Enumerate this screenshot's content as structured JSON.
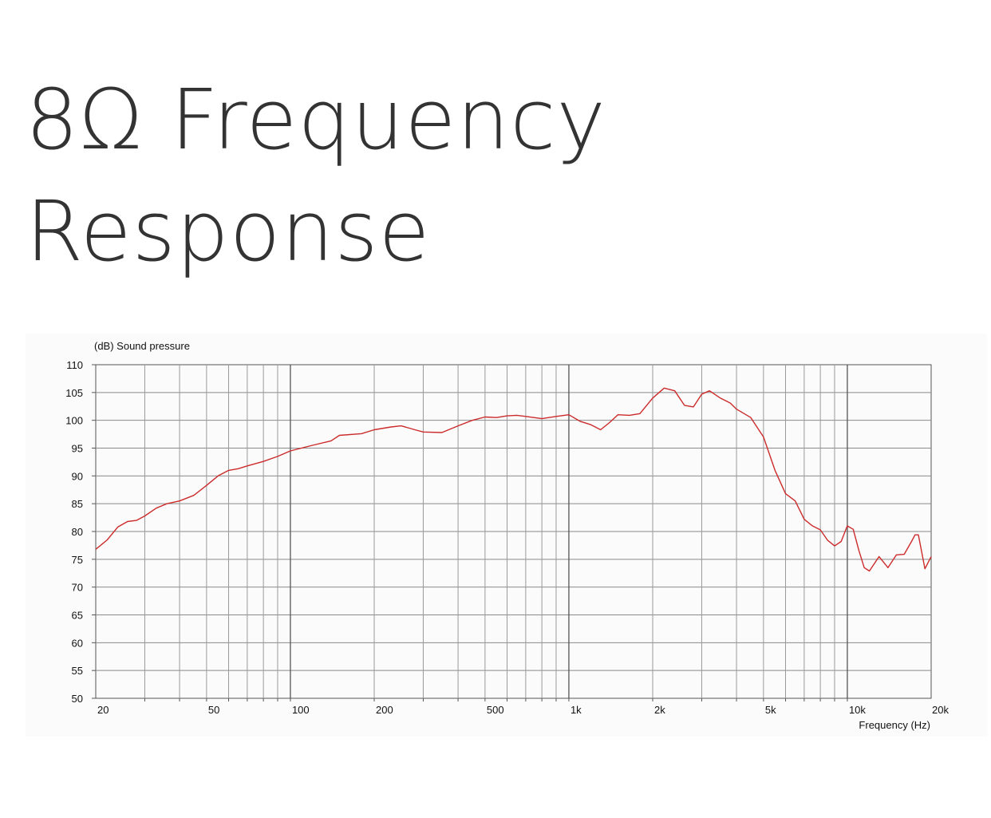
{
  "page": {
    "title_line1": "8Ω Frequency",
    "title_line2": "Response"
  },
  "chart_data": {
    "type": "line",
    "xlabel": "Frequency  (Hz)",
    "ylabel": "(dB)  Sound pressure",
    "x_scale": "log",
    "xlim": [
      20,
      20000
    ],
    "ylim": [
      50,
      110
    ],
    "grid": true,
    "y_ticks": [
      50,
      55,
      60,
      65,
      70,
      75,
      80,
      85,
      90,
      95,
      100,
      105,
      110
    ],
    "x_ticks": [
      {
        "value": 20,
        "label": "20"
      },
      {
        "value": 50,
        "label": "50"
      },
      {
        "value": 100,
        "label": "100"
      },
      {
        "value": 200,
        "label": "200"
      },
      {
        "value": 500,
        "label": "500"
      },
      {
        "value": 1000,
        "label": "1k"
      },
      {
        "value": 2000,
        "label": "2k"
      },
      {
        "value": 5000,
        "label": "5k"
      },
      {
        "value": 10000,
        "label": "10k"
      },
      {
        "value": 20000,
        "label": "20k"
      }
    ],
    "line_color": "#cc2b2b",
    "series": [
      {
        "x": [
          20,
          22,
          24,
          26,
          28,
          30,
          33,
          36,
          40,
          45,
          50,
          55,
          60,
          65,
          70,
          80,
          90,
          100,
          120,
          140,
          150,
          180,
          200,
          230,
          250,
          280,
          300,
          350,
          400,
          450,
          500,
          550,
          600,
          650,
          700,
          800,
          900,
          1000,
          1100,
          1200,
          1300,
          1400,
          1500,
          1650,
          1800,
          2000,
          2200,
          2400,
          2600,
          2800,
          3000,
          3200,
          3500,
          3800,
          4000,
          4500,
          5000,
          5500,
          6000,
          6500,
          7000,
          7500,
          8000,
          8500,
          9000,
          9500,
          10000,
          10500,
          11000,
          11500,
          12000,
          13000,
          14000,
          15000,
          16000,
          17000,
          17500,
          18000,
          19000,
          20000
        ],
        "y": [
          76.8,
          78.5,
          80.8,
          81.8,
          82.0,
          82.8,
          84.2,
          85.0,
          85.5,
          86.5,
          88.3,
          90.0,
          91.0,
          91.3,
          91.8,
          92.6,
          93.5,
          94.5,
          95.5,
          96.3,
          97.3,
          97.6,
          98.3,
          98.8,
          99.0,
          98.3,
          97.9,
          97.8,
          99.0,
          100.0,
          100.6,
          100.5,
          100.8,
          100.9,
          100.7,
          100.3,
          100.7,
          101.0,
          99.8,
          99.2,
          98.3,
          99.6,
          101.0,
          100.9,
          101.2,
          104.0,
          105.8,
          105.3,
          102.7,
          102.4,
          104.7,
          105.3,
          104.0,
          103.1,
          102.0,
          100.5,
          97.0,
          91.0,
          86.8,
          85.5,
          82.2,
          81.0,
          80.3,
          78.4,
          77.4,
          78.2,
          81.0,
          80.4,
          76.6,
          73.5,
          72.9,
          75.5,
          73.5,
          75.8,
          75.9,
          78.2,
          79.4,
          79.4,
          73.3,
          75.5
        ]
      }
    ]
  }
}
